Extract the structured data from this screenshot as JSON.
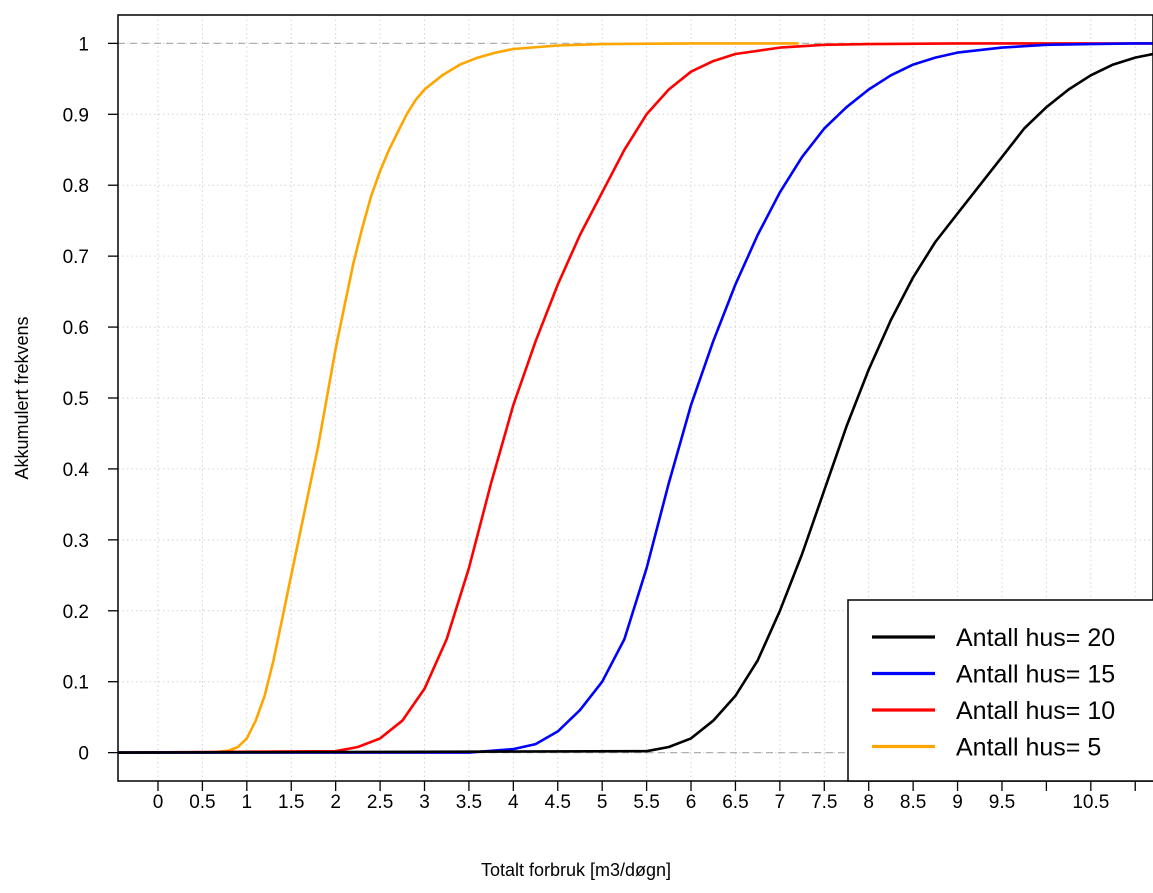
{
  "chart_data": {
    "type": "line",
    "title": "",
    "xlabel": "Totalt forbruk [m3/døgn]",
    "ylabel": "Akkumulert frekvens",
    "xlim": [
      -0.45,
      11.2
    ],
    "ylim": [
      -0.04,
      1.04
    ],
    "x_ticks": [
      0,
      0.5,
      1,
      1.5,
      2,
      2.5,
      3,
      3.5,
      4,
      4.5,
      5,
      5.5,
      6,
      6.5,
      7,
      7.5,
      8,
      8.5,
      9,
      9.5,
      10.5
    ],
    "x_tick_labels": [
      "0",
      "0.5",
      "1",
      "1.5",
      "2",
      "2.5",
      "3",
      "3.5",
      "4",
      "4.5",
      "5",
      "5.5",
      "6",
      "6.5",
      "7",
      "7.5",
      "8",
      "8.5",
      "9",
      "9.5",
      "10.5"
    ],
    "x_tick_marks": [
      0,
      0.5,
      1,
      1.5,
      2,
      2.5,
      3,
      3.5,
      4,
      4.5,
      5,
      5.5,
      6,
      6.5,
      7,
      7.5,
      8,
      8.5,
      9,
      9.5,
      10,
      10.5,
      11
    ],
    "y_ticks": [
      0,
      0.1,
      0.2,
      0.3,
      0.4,
      0.5,
      0.6,
      0.7,
      0.8,
      0.9,
      1
    ],
    "y_tick_labels": [
      "0",
      "0.1",
      "0.2",
      "0.3",
      "0.4",
      "0.5",
      "0.6",
      "0.7",
      "0.8",
      "0.9",
      "1"
    ],
    "grid": true,
    "reference_lines_y": [
      0,
      1
    ],
    "legend_position": "bottom-right",
    "series": [
      {
        "name": "Antall hus= 20",
        "color": "#000000",
        "x": [
          -0.45,
          5.5,
          5.75,
          6,
          6.25,
          6.5,
          6.75,
          7,
          7.25,
          7.5,
          7.75,
          8,
          8.25,
          8.5,
          8.75,
          9,
          9.25,
          9.5,
          9.75,
          10,
          10.25,
          10.5,
          10.75,
          11,
          11.2
        ],
        "y": [
          0,
          0.002,
          0.008,
          0.02,
          0.045,
          0.08,
          0.13,
          0.2,
          0.28,
          0.37,
          0.46,
          0.54,
          0.61,
          0.67,
          0.72,
          0.76,
          0.8,
          0.84,
          0.88,
          0.91,
          0.935,
          0.955,
          0.97,
          0.98,
          0.985
        ]
      },
      {
        "name": "Antall hus= 15",
        "color": "#0000ff",
        "x": [
          -0.45,
          3.5,
          4,
          4.25,
          4.5,
          4.75,
          5,
          5.25,
          5.5,
          5.75,
          6,
          6.25,
          6.5,
          6.75,
          7,
          7.25,
          7.5,
          7.75,
          8,
          8.25,
          8.5,
          8.75,
          9,
          9.5,
          10,
          10.5,
          11,
          11.2
        ],
        "y": [
          0,
          0,
          0.005,
          0.012,
          0.03,
          0.06,
          0.1,
          0.16,
          0.26,
          0.38,
          0.49,
          0.58,
          0.66,
          0.73,
          0.79,
          0.84,
          0.88,
          0.91,
          0.935,
          0.955,
          0.97,
          0.98,
          0.987,
          0.994,
          0.998,
          0.999,
          1,
          1
        ]
      },
      {
        "name": "Antall hus= 10",
        "color": "#ff0000",
        "x": [
          -0.45,
          2,
          2.25,
          2.5,
          2.75,
          3,
          3.25,
          3.5,
          3.75,
          4,
          4.25,
          4.5,
          4.75,
          5,
          5.25,
          5.5,
          5.75,
          6,
          6.25,
          6.5,
          7,
          7.5,
          8,
          9,
          10,
          11.2
        ],
        "y": [
          0,
          0.002,
          0.008,
          0.02,
          0.045,
          0.09,
          0.16,
          0.26,
          0.38,
          0.49,
          0.58,
          0.66,
          0.73,
          0.79,
          0.85,
          0.9,
          0.935,
          0.96,
          0.975,
          0.985,
          0.994,
          0.998,
          0.999,
          1,
          1,
          1
        ]
      },
      {
        "name": "Antall hus= 5",
        "color": "#ffa500",
        "x": [
          -0.45,
          0.6,
          0.8,
          0.9,
          1,
          1.1,
          1.2,
          1.3,
          1.4,
          1.5,
          1.6,
          1.7,
          1.8,
          1.9,
          2,
          2.1,
          2.2,
          2.3,
          2.4,
          2.5,
          2.6,
          2.7,
          2.8,
          2.9,
          3,
          3.2,
          3.4,
          3.6,
          3.8,
          4,
          4.5,
          5,
          6,
          7.2
        ],
        "y": [
          0,
          0,
          0.003,
          0.008,
          0.02,
          0.045,
          0.08,
          0.13,
          0.19,
          0.25,
          0.31,
          0.37,
          0.43,
          0.5,
          0.57,
          0.63,
          0.69,
          0.74,
          0.785,
          0.82,
          0.85,
          0.875,
          0.9,
          0.92,
          0.935,
          0.955,
          0.97,
          0.98,
          0.987,
          0.992,
          0.997,
          0.999,
          1,
          1
        ]
      }
    ]
  }
}
